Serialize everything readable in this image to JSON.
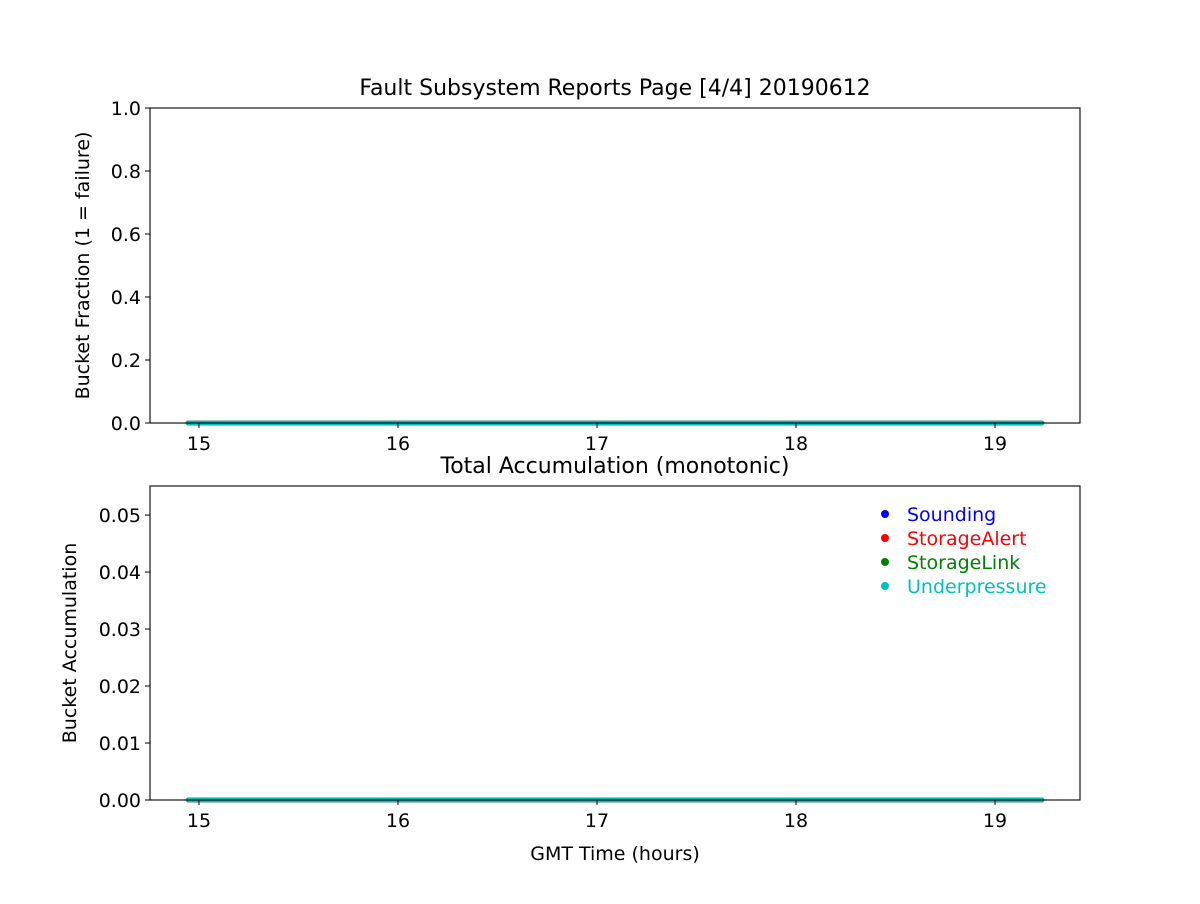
{
  "chart_data": [
    {
      "type": "line",
      "title": "Fault Subsystem Reports Page [4/4] 20190612",
      "xlabel": "",
      "ylabel": "Bucket Fraction (1 = failure)",
      "xlim": [
        14.754,
        19.427
      ],
      "ylim": [
        0,
        1.0
      ],
      "xticks": [
        15,
        16,
        17,
        18,
        19
      ],
      "xtick_labels": [
        "15",
        "16",
        "17",
        "18",
        "19"
      ],
      "yticks": [
        0,
        0.2,
        0.4,
        0.6,
        0.8,
        1.0
      ],
      "ytick_labels": [
        "0.0",
        "0.2",
        "0.4",
        "0.6",
        "0.8",
        "1.0"
      ],
      "grid": false,
      "series": [
        {
          "color": "#0000ff",
          "x": [
            14.945,
            19.236
          ],
          "y": [
            0,
            0
          ]
        },
        {
          "color": "#ff0000",
          "x": [
            14.945,
            19.236
          ],
          "y": [
            0,
            0
          ]
        },
        {
          "color": "#008000",
          "x": [
            14.945,
            19.236
          ],
          "y": [
            0,
            0
          ]
        },
        {
          "color": "#00bfbf",
          "x": [
            14.945,
            19.236
          ],
          "y": [
            0,
            0
          ]
        }
      ]
    },
    {
      "type": "line",
      "title": "Total Accumulation (monotonic)",
      "xlabel": "GMT Time (hours)",
      "ylabel": "Bucket Accumulation",
      "xlim": [
        14.754,
        19.427
      ],
      "ylim": [
        0,
        0.0551
      ],
      "xticks": [
        15,
        16,
        17,
        18,
        19
      ],
      "xtick_labels": [
        "15",
        "16",
        "17",
        "18",
        "19"
      ],
      "yticks": [
        0,
        0.01,
        0.02,
        0.03,
        0.04,
        0.05
      ],
      "ytick_labels": [
        "0.00",
        "0.01",
        "0.02",
        "0.03",
        "0.04",
        "0.05"
      ],
      "grid": false,
      "legend_placement": "top-right",
      "series": [
        {
          "name": "Sounding",
          "color": "#0000ff",
          "x": [
            14.945,
            19.236
          ],
          "y": [
            0,
            0
          ]
        },
        {
          "name": "StorageAlert",
          "color": "#ff0000",
          "x": [
            14.945,
            19.236
          ],
          "y": [
            0,
            0
          ]
        },
        {
          "name": "StorageLink",
          "color": "#008000",
          "x": [
            14.945,
            19.236
          ],
          "y": [
            0,
            0
          ]
        },
        {
          "name": "Underpressure",
          "color": "#00bfbf",
          "x": [
            14.945,
            19.236
          ],
          "y": [
            0,
            0
          ]
        }
      ]
    }
  ]
}
